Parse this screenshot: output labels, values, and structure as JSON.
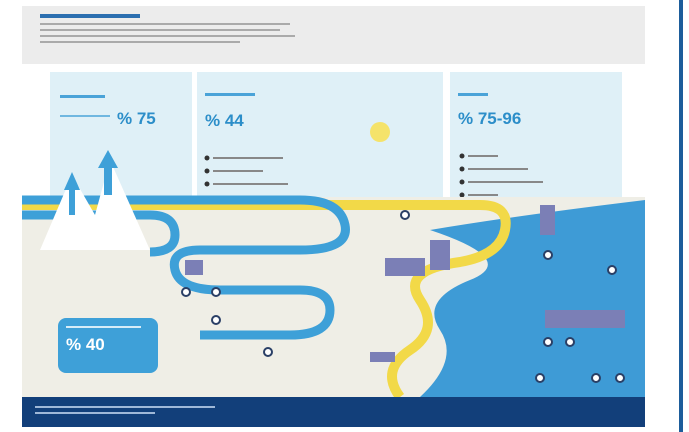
{
  "panels": [
    {
      "value": "% 75"
    },
    {
      "value": "% 44"
    },
    {
      "value": "% 75-96"
    }
  ],
  "callout": {
    "value": "% 40"
  }
}
